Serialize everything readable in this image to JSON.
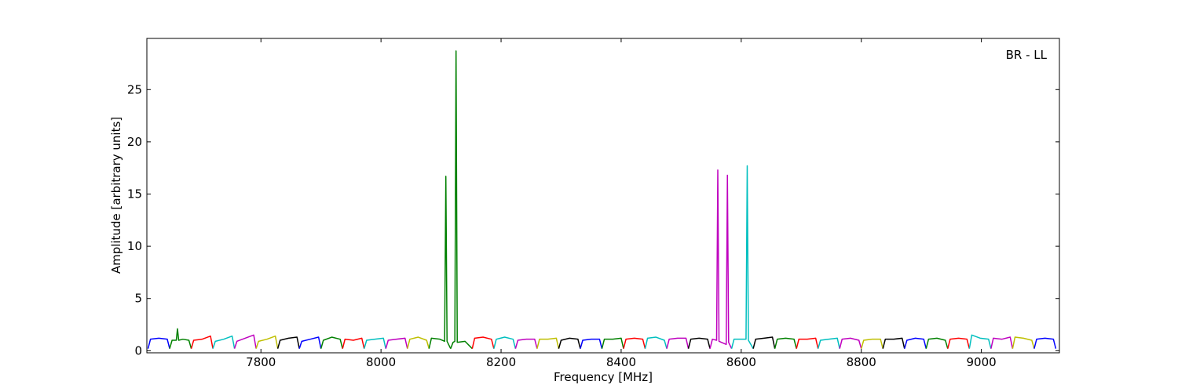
{
  "chart_data": {
    "type": "line",
    "annotation": "BR - LL",
    "x_label": "Frequency [MHz]",
    "y_label": "Amplitude [arbitrary units]",
    "xlim": [
      7610,
      9130
    ],
    "ylim": [
      -0.2,
      29.9
    ],
    "xticks": [
      7800,
      8000,
      8200,
      8400,
      8600,
      8800,
      9000
    ],
    "yticks": [
      0,
      5,
      10,
      15,
      20,
      25
    ],
    "grid": false,
    "series": [
      {
        "color": "#0000ff",
        "x": [
          7612,
          7616,
          7630,
          7644,
          7648
        ],
        "values": [
          0.2,
          1.1,
          1.2,
          1.1,
          0.2
        ]
      },
      {
        "color": "#008000",
        "x": [
          7648,
          7652,
          7659,
          7661,
          7663,
          7670,
          7680,
          7684
        ],
        "values": [
          0.2,
          1.0,
          1.0,
          2.1,
          1.0,
          1.1,
          1.0,
          0.2
        ]
      },
      {
        "color": "#ff0000",
        "x": [
          7684,
          7688,
          7702,
          7716,
          7720
        ],
        "values": [
          0.2,
          1.0,
          1.1,
          1.4,
          0.2
        ]
      },
      {
        "color": "#00bfbf",
        "x": [
          7720,
          7724,
          7738,
          7752,
          7756
        ],
        "values": [
          0.2,
          0.9,
          1.1,
          1.4,
          0.2
        ]
      },
      {
        "color": "#bf00bf",
        "x": [
          7756,
          7760,
          7774,
          7788,
          7792
        ],
        "values": [
          0.2,
          0.9,
          1.2,
          1.5,
          0.2
        ]
      },
      {
        "color": "#bfbf00",
        "x": [
          7792,
          7796,
          7810,
          7824,
          7828
        ],
        "values": [
          0.2,
          0.9,
          1.1,
          1.4,
          0.2
        ]
      },
      {
        "color": "#000000",
        "x": [
          7828,
          7832,
          7846,
          7860,
          7864
        ],
        "values": [
          0.2,
          1.0,
          1.2,
          1.3,
          0.2
        ]
      },
      {
        "color": "#0000ff",
        "x": [
          7864,
          7868,
          7882,
          7896,
          7900
        ],
        "values": [
          0.2,
          0.9,
          1.1,
          1.3,
          0.2
        ]
      },
      {
        "color": "#008000",
        "x": [
          7900,
          7904,
          7918,
          7932,
          7936
        ],
        "values": [
          0.2,
          1.0,
          1.3,
          1.1,
          0.2
        ]
      },
      {
        "color": "#ff0000",
        "x": [
          7936,
          7940,
          7954,
          7968,
          7972
        ],
        "values": [
          0.2,
          1.1,
          1.0,
          1.2,
          0.2
        ]
      },
      {
        "color": "#00bfbf",
        "x": [
          7972,
          7976,
          7990,
          8004,
          8008
        ],
        "values": [
          0.2,
          1.0,
          1.1,
          1.2,
          0.2
        ]
      },
      {
        "color": "#bf00bf",
        "x": [
          8008,
          8012,
          8026,
          8040,
          8044
        ],
        "values": [
          0.2,
          1.0,
          1.1,
          1.2,
          0.2
        ]
      },
      {
        "color": "#bfbf00",
        "x": [
          8044,
          8048,
          8062,
          8076,
          8080
        ],
        "values": [
          0.2,
          1.1,
          1.3,
          1.0,
          0.2
        ]
      },
      {
        "color": "#008000",
        "x": [
          8080,
          8084,
          8098,
          8106,
          8108,
          8110,
          8116
        ],
        "values": [
          0.2,
          1.2,
          1.1,
          0.9,
          16.7,
          0.9,
          0.2
        ]
      },
      {
        "color": "#008000",
        "x": [
          8116,
          8120,
          8123,
          8125,
          8127,
          8140,
          8152
        ],
        "values": [
          0.2,
          0.8,
          0.9,
          28.7,
          0.8,
          0.9,
          0.2
        ]
      },
      {
        "color": "#ff0000",
        "x": [
          8152,
          8156,
          8170,
          8184,
          8188
        ],
        "values": [
          0.2,
          1.2,
          1.3,
          1.1,
          0.2
        ]
      },
      {
        "color": "#00bfbf",
        "x": [
          8188,
          8192,
          8206,
          8220,
          8224
        ],
        "values": [
          0.2,
          1.1,
          1.3,
          1.1,
          0.2
        ]
      },
      {
        "color": "#bf00bf",
        "x": [
          8224,
          8228,
          8242,
          8256,
          8260
        ],
        "values": [
          0.2,
          1.0,
          1.1,
          1.1,
          0.2
        ]
      },
      {
        "color": "#bfbf00",
        "x": [
          8260,
          8264,
          8278,
          8292,
          8296
        ],
        "values": [
          0.2,
          1.1,
          1.1,
          1.2,
          0.2
        ]
      },
      {
        "color": "#000000",
        "x": [
          8296,
          8300,
          8314,
          8328,
          8332
        ],
        "values": [
          0.2,
          1.0,
          1.2,
          1.1,
          0.2
        ]
      },
      {
        "color": "#0000ff",
        "x": [
          8332,
          8336,
          8350,
          8364,
          8368
        ],
        "values": [
          0.2,
          1.0,
          1.1,
          1.1,
          0.2
        ]
      },
      {
        "color": "#008000",
        "x": [
          8368,
          8372,
          8386,
          8400,
          8404
        ],
        "values": [
          0.2,
          1.1,
          1.1,
          1.2,
          0.2
        ]
      },
      {
        "color": "#ff0000",
        "x": [
          8404,
          8408,
          8422,
          8436,
          8440
        ],
        "values": [
          0.2,
          1.1,
          1.2,
          1.1,
          0.2
        ]
      },
      {
        "color": "#00bfbf",
        "x": [
          8440,
          8444,
          8458,
          8472,
          8476
        ],
        "values": [
          0.2,
          1.2,
          1.3,
          1.0,
          0.2
        ]
      },
      {
        "color": "#bf00bf",
        "x": [
          8476,
          8480,
          8494,
          8508,
          8512
        ],
        "values": [
          0.2,
          1.1,
          1.2,
          1.2,
          0.2
        ]
      },
      {
        "color": "#000000",
        "x": [
          8512,
          8516,
          8530,
          8544,
          8548
        ],
        "values": [
          0.2,
          1.1,
          1.2,
          1.1,
          0.2
        ]
      },
      {
        "color": "#bf00bf",
        "x": [
          8548,
          8552,
          8559,
          8561,
          8563,
          8575,
          8577,
          8579,
          8584
        ],
        "values": [
          0.2,
          1.1,
          1.0,
          17.3,
          0.9,
          0.6,
          16.8,
          0.8,
          0.2
        ]
      },
      {
        "color": "#00bfbf",
        "x": [
          8584,
          8588,
          8608,
          8610,
          8612,
          8620
        ],
        "values": [
          0.2,
          1.1,
          1.1,
          17.7,
          1.0,
          0.2
        ]
      },
      {
        "color": "#000000",
        "x": [
          8620,
          8624,
          8638,
          8652,
          8656
        ],
        "values": [
          0.2,
          1.1,
          1.2,
          1.3,
          0.2
        ]
      },
      {
        "color": "#008000",
        "x": [
          8656,
          8660,
          8674,
          8688,
          8692
        ],
        "values": [
          0.2,
          1.1,
          1.2,
          1.1,
          0.2
        ]
      },
      {
        "color": "#ff0000",
        "x": [
          8692,
          8696,
          8710,
          8724,
          8728
        ],
        "values": [
          0.2,
          1.1,
          1.1,
          1.2,
          0.2
        ]
      },
      {
        "color": "#00bfbf",
        "x": [
          8728,
          8732,
          8746,
          8760,
          8764
        ],
        "values": [
          0.2,
          1.0,
          1.1,
          1.2,
          0.2
        ]
      },
      {
        "color": "#bf00bf",
        "x": [
          8764,
          8768,
          8782,
          8796,
          8800
        ],
        "values": [
          0.2,
          1.1,
          1.2,
          1.0,
          0.2
        ]
      },
      {
        "color": "#bfbf00",
        "x": [
          8800,
          8804,
          8818,
          8832,
          8836
        ],
        "values": [
          0.2,
          1.0,
          1.1,
          1.1,
          0.2
        ]
      },
      {
        "color": "#000000",
        "x": [
          8836,
          8840,
          8854,
          8868,
          8872
        ],
        "values": [
          0.2,
          1.1,
          1.1,
          1.2,
          0.2
        ]
      },
      {
        "color": "#0000ff",
        "x": [
          8872,
          8876,
          8890,
          8904,
          8908
        ],
        "values": [
          0.2,
          1.0,
          1.2,
          1.1,
          0.2
        ]
      },
      {
        "color": "#008000",
        "x": [
          8908,
          8912,
          8926,
          8940,
          8944
        ],
        "values": [
          0.2,
          1.1,
          1.2,
          1.0,
          0.2
        ]
      },
      {
        "color": "#ff0000",
        "x": [
          8944,
          8948,
          8962,
          8976,
          8980
        ],
        "values": [
          0.2,
          1.1,
          1.2,
          1.1,
          0.2
        ]
      },
      {
        "color": "#00bfbf",
        "x": [
          8980,
          8984,
          8998,
          9012,
          9016
        ],
        "values": [
          0.2,
          1.5,
          1.2,
          1.1,
          0.2
        ]
      },
      {
        "color": "#bf00bf",
        "x": [
          9016,
          9020,
          9034,
          9048,
          9052
        ],
        "values": [
          0.2,
          1.2,
          1.1,
          1.3,
          0.2
        ]
      },
      {
        "color": "#bfbf00",
        "x": [
          9052,
          9056,
          9070,
          9084,
          9088
        ],
        "values": [
          0.2,
          1.3,
          1.2,
          1.0,
          0.2
        ]
      },
      {
        "color": "#0000ff",
        "x": [
          9088,
          9092,
          9106,
          9120,
          9124
        ],
        "values": [
          0.2,
          1.1,
          1.2,
          1.1,
          0.2
        ]
      }
    ]
  }
}
